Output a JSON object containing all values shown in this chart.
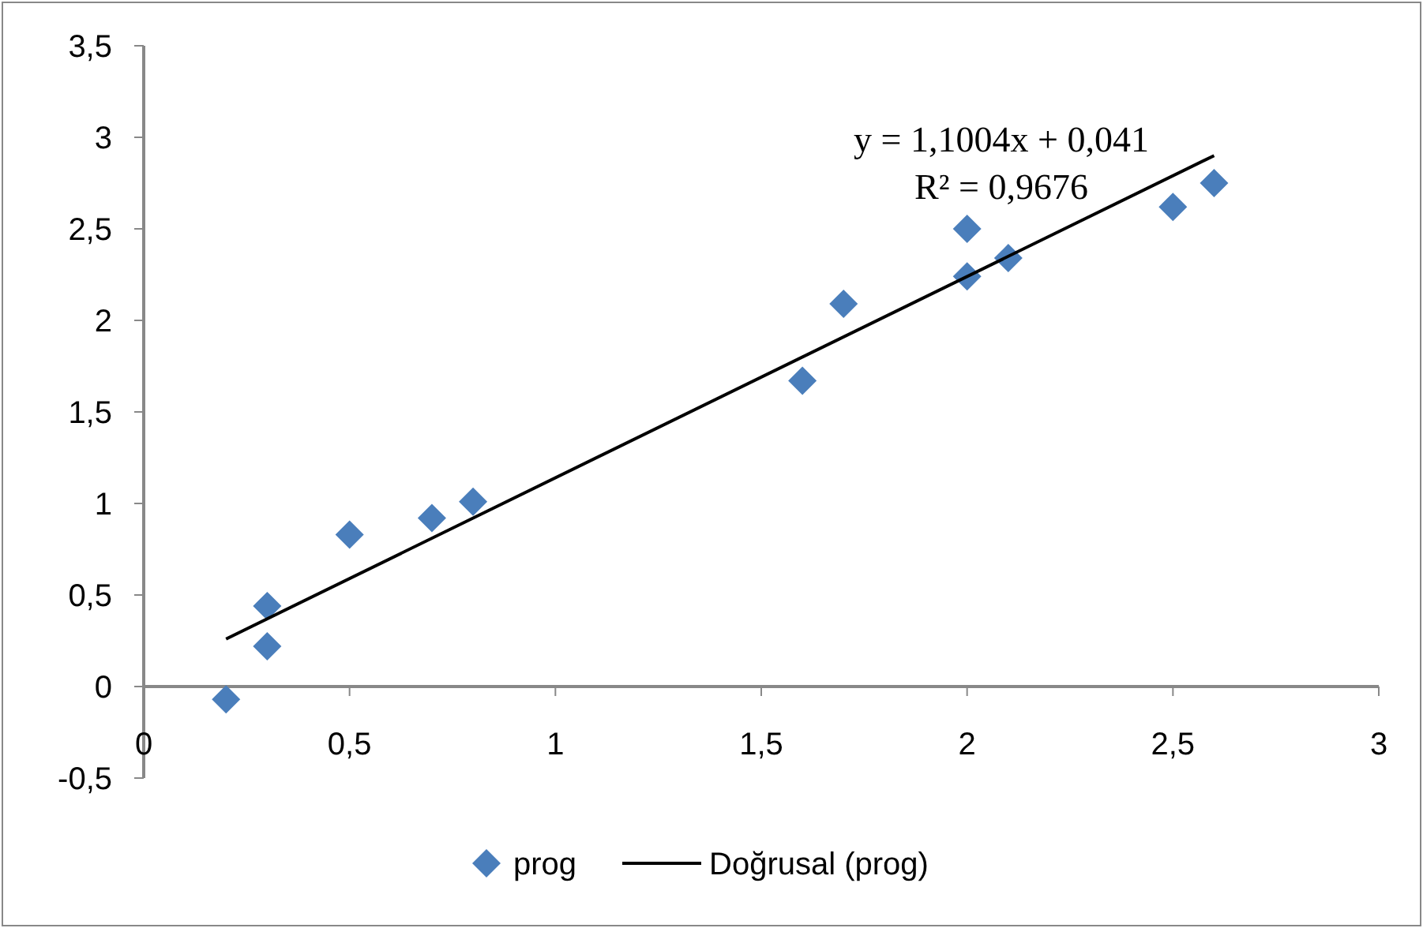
{
  "chart_data": {
    "type": "scatter",
    "x": [
      0.2,
      0.3,
      0.3,
      0.5,
      0.7,
      0.8,
      1.6,
      1.7,
      2.0,
      2.0,
      2.1,
      2.5,
      2.6
    ],
    "series": [
      {
        "name": "prog",
        "color": "#4a7ebb",
        "marker": "diamond",
        "values": [
          -0.07,
          0.44,
          0.22,
          0.83,
          0.92,
          1.01,
          1.67,
          2.09,
          2.5,
          2.24,
          2.34,
          2.62,
          2.75
        ]
      },
      {
        "name": "Doğrusal (prog)",
        "type": "line",
        "color": "#000000",
        "marker": "none",
        "line_style": "solid",
        "x": [
          0.2,
          2.6
        ],
        "values": [
          0.26,
          2.9
        ]
      }
    ],
    "xlim": [
      0,
      3
    ],
    "xticks": [
      0,
      {
        "value": 0.5,
        "label": "0,5"
      },
      1,
      {
        "value": 1.5,
        "label": "1,5"
      },
      2,
      {
        "value": 2.5,
        "label": "2,5"
      },
      3
    ],
    "ylim": [
      -0.5,
      3.5
    ],
    "yticks": [
      {
        "value": -0.5,
        "label": "-0,5"
      },
      0,
      {
        "value": 0.5,
        "label": "0,5"
      },
      1,
      {
        "value": 1.5,
        "label": "1,5"
      },
      2,
      {
        "value": 2.5,
        "label": "2,5"
      },
      3,
      {
        "value": 3.5,
        "label": "3,5"
      }
    ],
    "annotations": [
      "y = 1,1004x + 0,041",
      "R² = 0,9676"
    ],
    "grid": false,
    "legend": "bottom"
  }
}
